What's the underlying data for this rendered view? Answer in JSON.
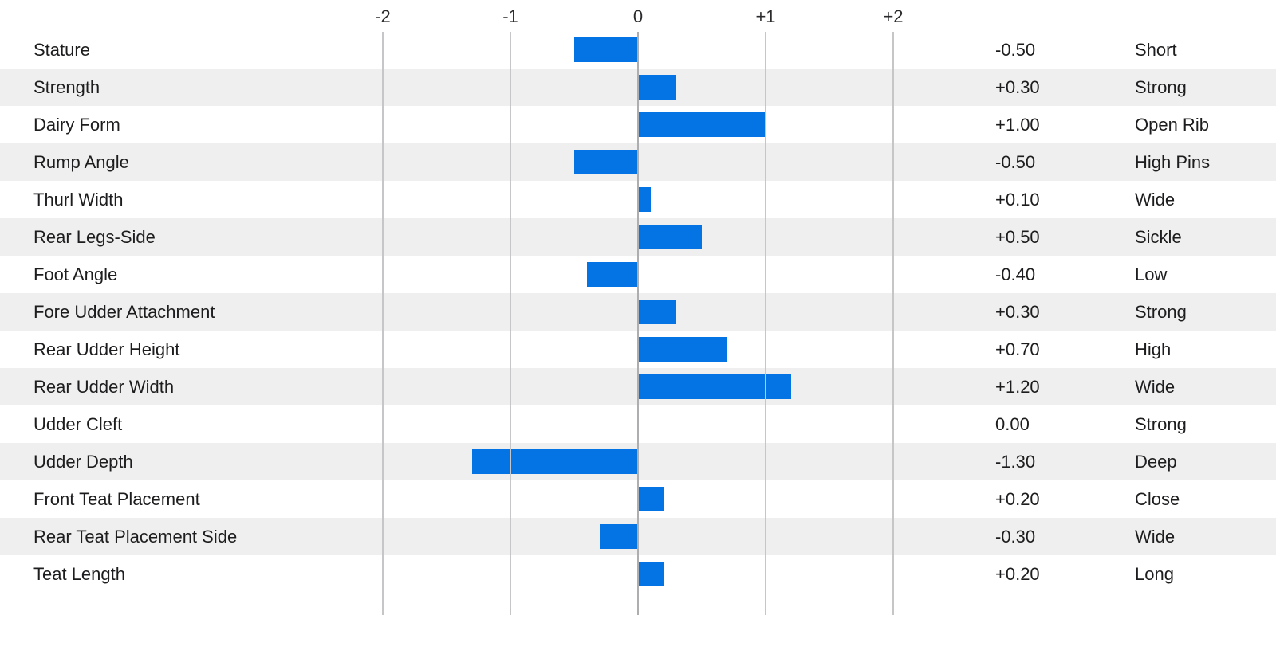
{
  "chart_data": {
    "type": "bar",
    "orientation": "horizontal",
    "title": "",
    "xlabel": "",
    "ylabel": "",
    "xlim": [
      -2,
      2
    ],
    "grid": "vertical",
    "legend_position": "none",
    "axis_ticks": [
      "-2",
      "-1",
      "0",
      "+1",
      "+2"
    ],
    "axis_tick_values": [
      -2,
      -1,
      0,
      1,
      2
    ],
    "categories": [
      "Stature",
      "Strength",
      "Dairy Form",
      "Rump Angle",
      "Thurl Width",
      "Rear Legs-Side",
      "Foot Angle",
      "Fore Udder Attachment",
      "Rear Udder Height",
      "Rear Udder Width",
      "Udder Cleft",
      "Udder Depth",
      "Front Teat Placement",
      "Rear Teat Placement Side",
      "Teat Length"
    ],
    "values": [
      -0.5,
      0.3,
      1.0,
      -0.5,
      0.1,
      0.5,
      -0.4,
      0.3,
      0.7,
      1.2,
      0.0,
      -1.3,
      0.2,
      -0.3,
      0.2
    ],
    "value_labels": [
      "-0.50",
      "+0.30",
      "+1.00",
      "-0.50",
      "+0.10",
      "+0.50",
      "-0.40",
      "+0.30",
      "+0.70",
      "+1.20",
      "0.00",
      "-1.30",
      "+0.20",
      "-0.30",
      "+0.20"
    ],
    "descriptors": [
      "Short",
      "Strong",
      "Open Rib",
      "High Pins",
      "Wide",
      "Sickle",
      "Low",
      "Strong",
      "High",
      "Wide",
      "Strong",
      "Deep",
      "Close",
      "Wide",
      "Long"
    ],
    "bar_color": "#0473e4",
    "stripe_color": "#efefef",
    "gridline_color": "#c6c6c8",
    "zero_line_color": "#aeaeb0",
    "text_color": "#1d1d1f"
  }
}
